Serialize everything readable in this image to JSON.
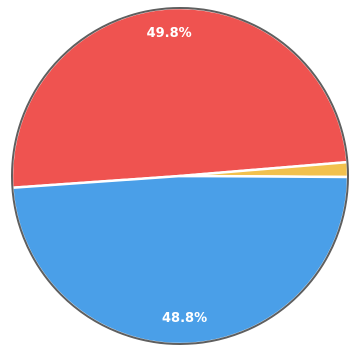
{
  "chart_data": {
    "type": "pie",
    "slices": [
      {
        "label": "",
        "value": 49.8,
        "display": "49.8%",
        "color": "#ef5350"
      },
      {
        "label": "",
        "value": 1.4,
        "display": "",
        "color": "#f2c14e"
      },
      {
        "label": "",
        "value": 48.8,
        "display": "48.8%",
        "color": "#4a9fe8"
      }
    ],
    "start_angle_deg": 176,
    "direction": "clockwise",
    "edge_color": "#ffffff",
    "outline_color": "#5f5f5f"
  }
}
